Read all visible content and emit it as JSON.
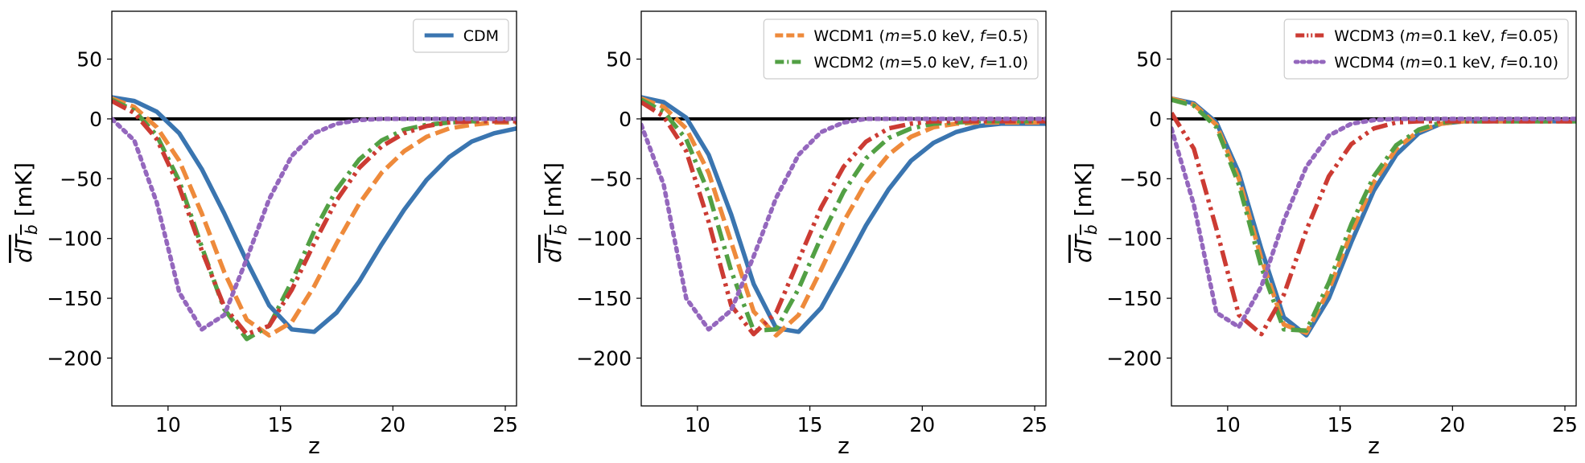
{
  "chart_data": [
    {
      "type": "line",
      "xlabel": "z",
      "ylabel": "dT_b [mK]",
      "ylabel_parts": {
        "main": "dT",
        "sub": "b",
        "unit": "[mK]"
      },
      "xlim": [
        7.5,
        25.5
      ],
      "ylim": [
        -240,
        90
      ],
      "xticks": [
        10,
        15,
        20,
        25
      ],
      "yticks": [
        50,
        0,
        -50,
        -100,
        -150,
        -200
      ],
      "legend_position": "top-right",
      "series": [
        {
          "name": "CDM",
          "legend": [
            {
              "t": "CDM"
            }
          ],
          "color": "#3a75b0",
          "dash": "solid",
          "in_legend": true,
          "x": [
            7.5,
            8.5,
            9.5,
            10.5,
            11.5,
            12.5,
            13.5,
            14.5,
            15.5,
            16.5,
            17.5,
            18.5,
            19.5,
            20.5,
            21.5,
            22.5,
            23.5,
            24.5,
            25.5
          ],
          "y": [
            18,
            15,
            6,
            -12,
            -42,
            -79,
            -119,
            -156,
            -176,
            -178,
            -162,
            -136,
            -105,
            -76,
            -51,
            -32,
            -19,
            -12,
            -8
          ]
        },
        {
          "name": "WCDM1",
          "legend": [
            {
              "t": "WCDM1"
            }
          ],
          "color": "#ee8a3b",
          "dash": "dashed",
          "in_legend": false,
          "x": [
            7.5,
            8.5,
            9.5,
            10.5,
            11.5,
            12.5,
            13.5,
            14.5,
            15.5,
            16.5,
            17.5,
            18.5,
            19.5,
            20.5,
            21.5,
            22.5,
            23.5,
            24.5,
            25.5
          ],
          "y": [
            17,
            10,
            -7,
            -35,
            -79,
            -128,
            -168,
            -181,
            -170,
            -140,
            -104,
            -71,
            -45,
            -27,
            -15,
            -8,
            -5,
            -3,
            -3
          ]
        },
        {
          "name": "WCDM2",
          "legend": [
            {
              "t": "WCDM2"
            }
          ],
          "color": "#52a044",
          "dash": "dashdot",
          "in_legend": false,
          "x": [
            7.5,
            8.5,
            9.5,
            10.5,
            11.5,
            12.5,
            13.5,
            14.5,
            15.5,
            16.5,
            17.5,
            18.5,
            19.5,
            20.5,
            21.5,
            22.5,
            23.5,
            24.5,
            25.5
          ],
          "y": [
            16,
            7,
            -14,
            -52,
            -107,
            -159,
            -184,
            -173,
            -136,
            -94,
            -59,
            -34,
            -18,
            -9,
            -5,
            -3,
            -2,
            -2,
            -2
          ]
        },
        {
          "name": "WCDM3",
          "legend": [
            {
              "t": "WCDM3"
            }
          ],
          "color": "#cc3b33",
          "dash": "dashdotdot",
          "in_legend": false,
          "x": [
            7.5,
            8.5,
            9.5,
            10.5,
            11.5,
            12.5,
            13.5,
            14.5,
            15.5,
            16.5,
            17.5,
            18.5,
            19.5,
            20.5,
            21.5,
            22.5,
            23.5,
            24.5,
            25.5
          ],
          "y": [
            15,
            5,
            -17,
            -57,
            -110,
            -157,
            -180,
            -173,
            -143,
            -104,
            -68,
            -41,
            -23,
            -12,
            -6,
            -3,
            -2,
            -2,
            -2
          ]
        },
        {
          "name": "WCDM4",
          "legend": [
            {
              "t": "WCDM4"
            }
          ],
          "color": "#9467bd",
          "dash": "dotted",
          "in_legend": false,
          "x": [
            7.5,
            8.5,
            9.5,
            10.5,
            11.5,
            12.5,
            13.5,
            14.5,
            15.5,
            16.5,
            17.5,
            18.5,
            19.5,
            20.5,
            21.5,
            22.5,
            23.5,
            24.5,
            25.5
          ],
          "y": [
            0,
            -18,
            -70,
            -145,
            -176,
            -164,
            -117,
            -67,
            -31,
            -12,
            -4,
            -1,
            0,
            0,
            0,
            0,
            0,
            0,
            0
          ]
        }
      ]
    },
    {
      "type": "line",
      "xlabel": "z",
      "ylabel": "dT_b [mK]",
      "ylabel_parts": {
        "main": "dT",
        "sub": "b",
        "unit": "[mK]"
      },
      "xlim": [
        7.5,
        25.5
      ],
      "ylim": [
        -240,
        90
      ],
      "xticks": [
        10,
        15,
        20,
        25
      ],
      "yticks": [
        50,
        0,
        -50,
        -100,
        -150,
        -200
      ],
      "legend_position": "top-right",
      "series": [
        {
          "name": "CDM",
          "legend": [
            {
              "t": "CDM"
            }
          ],
          "color": "#3a75b0",
          "dash": "solid",
          "in_legend": false,
          "x": [
            7.5,
            8.5,
            9.5,
            10.5,
            11.5,
            12.5,
            13.5,
            14.5,
            15.5,
            16.5,
            17.5,
            18.5,
            19.5,
            20.5,
            21.5,
            22.5,
            23.5,
            24.5,
            25.5
          ],
          "y": [
            18,
            14,
            1,
            -30,
            -80,
            -138,
            -175,
            -178,
            -158,
            -124,
            -89,
            -59,
            -35,
            -20,
            -11,
            -6,
            -4,
            -4,
            -4
          ]
        },
        {
          "name": "WCDM1 (m=5.0 keV, f=0.5)",
          "legend": [
            {
              "t": "WCDM1 ("
            },
            {
              "t": "m",
              "i": true
            },
            {
              "t": "=5.0 keV, "
            },
            {
              "t": "f",
              "i": true
            },
            {
              "t": "=0.5)"
            }
          ],
          "color": "#ee8a3b",
          "dash": "dashed",
          "in_legend": true,
          "x": [
            7.5,
            8.5,
            9.5,
            10.5,
            11.5,
            12.5,
            13.5,
            14.5,
            15.5,
            16.5,
            17.5,
            18.5,
            19.5,
            20.5,
            21.5,
            22.5,
            23.5,
            24.5,
            25.5
          ],
          "y": [
            17,
            10,
            -8,
            -45,
            -103,
            -161,
            -181,
            -164,
            -126,
            -86,
            -53,
            -30,
            -15,
            -7,
            -4,
            -3,
            -3,
            -3,
            -3
          ]
        },
        {
          "name": "WCDM2 (m=5.0 keV, f=1.0)",
          "legend": [
            {
              "t": "WCDM2 ("
            },
            {
              "t": "m",
              "i": true
            },
            {
              "t": "=5.0 keV, "
            },
            {
              "t": "f",
              "i": true
            },
            {
              "t": "=1.0)"
            }
          ],
          "color": "#52a044",
          "dash": "dashdot",
          "in_legend": true,
          "x": [
            7.5,
            8.5,
            9.5,
            10.5,
            11.5,
            12.5,
            13.5,
            14.5,
            15.5,
            16.5,
            17.5,
            18.5,
            19.5,
            20.5,
            21.5,
            22.5,
            23.5,
            24.5,
            25.5
          ],
          "y": [
            16,
            6,
            -17,
            -62,
            -127,
            -177,
            -176,
            -142,
            -99,
            -61,
            -33,
            -16,
            -8,
            -4,
            -3,
            -2,
            -2,
            -2,
            -2
          ]
        },
        {
          "name": "WCDM3",
          "legend": [
            {
              "t": "WCDM3"
            }
          ],
          "color": "#cc3b33",
          "dash": "dashdotdot",
          "in_legend": false,
          "x": [
            7.5,
            8.5,
            9.5,
            10.5,
            11.5,
            12.5,
            13.5,
            14.5,
            15.5,
            16.5,
            17.5,
            18.5,
            19.5,
            20.5,
            21.5,
            22.5,
            23.5,
            24.5,
            25.5
          ],
          "y": [
            14,
            2,
            -27,
            -86,
            -156,
            -180,
            -162,
            -118,
            -74,
            -40,
            -19,
            -8,
            -4,
            -2,
            -2,
            -2,
            -2,
            -2,
            -2
          ]
        },
        {
          "name": "WCDM4",
          "legend": [
            {
              "t": "WCDM4"
            }
          ],
          "color": "#9467bd",
          "dash": "dotted",
          "in_legend": false,
          "x": [
            7.5,
            8.5,
            9.5,
            10.5,
            11.5,
            12.5,
            13.5,
            14.5,
            15.5,
            16.5,
            17.5,
            18.5,
            19.5,
            20.5,
            21.5,
            22.5,
            23.5,
            24.5,
            25.5
          ],
          "y": [
            -5,
            -55,
            -150,
            -176,
            -160,
            -115,
            -66,
            -30,
            -11,
            -3,
            0,
            0,
            0,
            0,
            0,
            0,
            0,
            0,
            0
          ]
        }
      ]
    },
    {
      "type": "line",
      "xlabel": "z",
      "ylabel": "dT_b [mK]",
      "ylabel_parts": {
        "main": "dT",
        "sub": "b",
        "unit": "[mK]"
      },
      "xlim": [
        7.5,
        25.5
      ],
      "ylim": [
        -240,
        90
      ],
      "xticks": [
        10,
        15,
        20,
        25
      ],
      "yticks": [
        50,
        0,
        -50,
        -100,
        -150,
        -200
      ],
      "legend_position": "top-right",
      "series": [
        {
          "name": "CDM",
          "legend": [
            {
              "t": "CDM"
            }
          ],
          "color": "#3a75b0",
          "dash": "solid",
          "in_legend": false,
          "x": [
            7.5,
            8.5,
            9.5,
            10.5,
            11.5,
            12.5,
            13.5,
            14.5,
            15.5,
            16.5,
            17.5,
            18.5,
            19.5,
            20.5,
            21.5,
            22.5,
            23.5,
            24.5,
            25.5
          ],
          "y": [
            17,
            13,
            -3,
            -45,
            -109,
            -166,
            -181,
            -150,
            -103,
            -60,
            -30,
            -12,
            -4,
            -2,
            -2,
            -2,
            -2,
            -2,
            -2
          ]
        },
        {
          "name": "WCDM1",
          "legend": [
            {
              "t": "WCDM1"
            }
          ],
          "color": "#ee8a3b",
          "dash": "dashed",
          "in_legend": false,
          "x": [
            7.5,
            8.5,
            9.5,
            10.5,
            11.5,
            12.5,
            13.5,
            14.5,
            15.5,
            16.5,
            17.5,
            18.5,
            19.5,
            20.5,
            21.5,
            22.5,
            23.5,
            24.5,
            25.5
          ],
          "y": [
            17,
            12,
            -5,
            -50,
            -117,
            -172,
            -179,
            -143,
            -95,
            -53,
            -25,
            -10,
            -4,
            -2,
            -2,
            -2,
            -2,
            -2,
            -2
          ]
        },
        {
          "name": "WCDM2",
          "legend": [
            {
              "t": "WCDM2"
            }
          ],
          "color": "#52a044",
          "dash": "dashdot",
          "in_legend": false,
          "x": [
            7.5,
            8.5,
            9.5,
            10.5,
            11.5,
            12.5,
            13.5,
            14.5,
            15.5,
            16.5,
            17.5,
            18.5,
            19.5,
            20.5,
            21.5,
            22.5,
            23.5,
            24.5,
            25.5
          ],
          "y": [
            16,
            11,
            -7,
            -55,
            -124,
            -176,
            -177,
            -137,
            -88,
            -48,
            -22,
            -9,
            -3,
            -2,
            -2,
            -2,
            -2,
            -2,
            -2
          ]
        },
        {
          "name": "WCDM3 (m=0.1 keV, f=0.05)",
          "legend": [
            {
              "t": "WCDM3 ("
            },
            {
              "t": "m",
              "i": true
            },
            {
              "t": "=0.1 keV, "
            },
            {
              "t": "f",
              "i": true
            },
            {
              "t": "=0.05)"
            }
          ],
          "color": "#cc3b33",
          "dash": "dashdotdot",
          "in_legend": true,
          "x": [
            7.5,
            8.5,
            9.5,
            10.5,
            11.5,
            12.5,
            13.5,
            14.5,
            15.5,
            16.5,
            17.5,
            18.5,
            19.5,
            20.5,
            21.5,
            22.5,
            23.5,
            24.5,
            25.5
          ],
          "y": [
            5,
            -25,
            -92,
            -164,
            -180,
            -147,
            -93,
            -48,
            -21,
            -8,
            -3,
            -2,
            -2,
            -2,
            -2,
            -2,
            -2,
            -2,
            -2
          ]
        },
        {
          "name": "WCDM4 (m=0.1 keV, f=0.10)",
          "legend": [
            {
              "t": "WCDM4 ("
            },
            {
              "t": "m",
              "i": true
            },
            {
              "t": "=0.1 keV, "
            },
            {
              "t": "f",
              "i": true
            },
            {
              "t": "=0.10)"
            }
          ],
          "color": "#9467bd",
          "dash": "dotted",
          "in_legend": true,
          "x": [
            7.5,
            8.5,
            9.5,
            10.5,
            11.5,
            12.5,
            13.5,
            14.5,
            15.5,
            16.5,
            17.5,
            18.5,
            19.5,
            20.5,
            21.5,
            22.5,
            23.5,
            24.5,
            25.5
          ],
          "y": [
            -8,
            -72,
            -162,
            -174,
            -140,
            -85,
            -40,
            -14,
            -4,
            -1,
            0,
            0,
            0,
            0,
            0,
            0,
            0,
            0,
            0
          ]
        }
      ]
    }
  ]
}
